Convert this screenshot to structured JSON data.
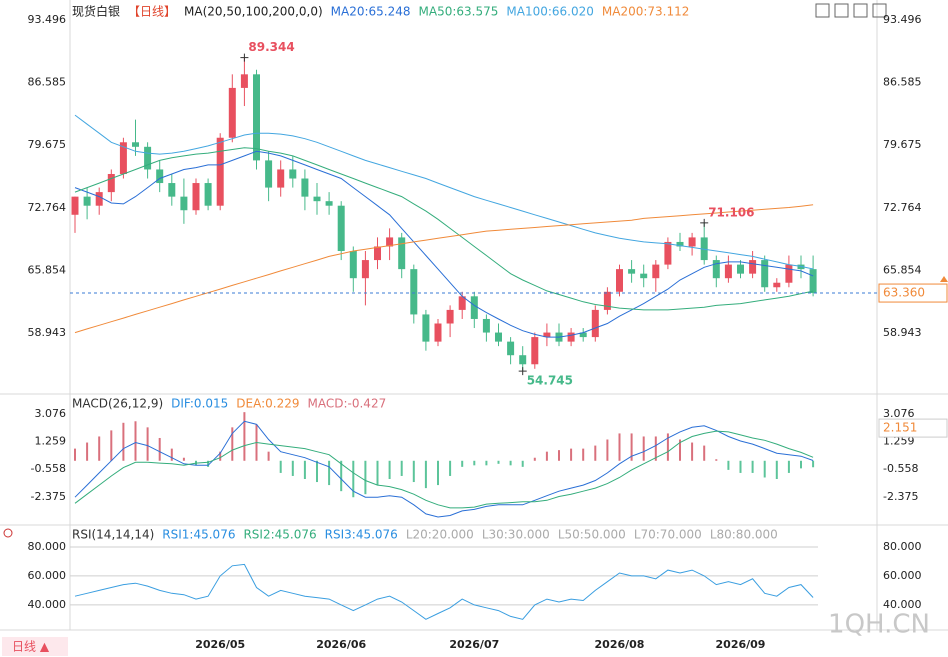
{
  "chart_data": [
    {
      "type": "candlestick",
      "title": "现货白银",
      "period": "【日线】",
      "ma_label": "MA(20,50,100,200,0,0)",
      "categories": [
        null,
        null,
        null,
        null,
        null,
        null,
        null,
        null,
        null,
        null,
        null,
        null,
        "2026/05",
        null,
        null,
        null,
        null,
        null,
        null,
        null,
        null,
        null,
        "2026/06",
        null,
        null,
        null,
        null,
        null,
        null,
        null,
        null,
        null,
        null,
        "2026/07",
        null,
        null,
        null,
        null,
        null,
        null,
        null,
        null,
        null,
        null,
        null,
        "2026/08",
        null,
        null,
        null,
        null,
        null,
        null,
        null,
        null,
        null,
        "2026/09",
        null,
        null,
        null,
        null,
        null,
        null
      ],
      "open": [
        72,
        74,
        73,
        74.5,
        76.5,
        80,
        79.5,
        77,
        75.5,
        74,
        72.5,
        75.5,
        73,
        80.5,
        86,
        87.5,
        78,
        75,
        77,
        76,
        74,
        73.5,
        73,
        68,
        65,
        67,
        68.5,
        69.5,
        66,
        61,
        58,
        60,
        61.5,
        63,
        60.5,
        59,
        58,
        56.5,
        55.5,
        58.5,
        59,
        58,
        59,
        58.5,
        61.5,
        63.5,
        66,
        65.5,
        65,
        66.5,
        69,
        68.5,
        69.5,
        67,
        65,
        66.5,
        65.5,
        67,
        64,
        64.5,
        66.5,
        66
      ],
      "high": [
        74,
        75,
        75,
        77,
        80.5,
        82.5,
        80,
        78,
        76.5,
        76,
        76,
        76,
        81,
        87.5,
        89.344,
        88,
        79,
        78,
        78.5,
        77,
        75.5,
        74.5,
        73.5,
        68.5,
        68,
        69.5,
        70.5,
        70,
        66.5,
        61.5,
        60.5,
        62,
        63.5,
        63.5,
        61,
        60,
        58.5,
        57.5,
        59,
        60,
        60,
        59.5,
        59.5,
        62,
        64,
        66.5,
        67,
        66.5,
        67,
        69.5,
        70,
        70,
        71.106,
        67.5,
        67.5,
        67,
        68,
        67.5,
        65,
        67.5,
        67.5,
        67.5
      ],
      "low": [
        70,
        71.5,
        72,
        73.5,
        76,
        78.5,
        76,
        74.5,
        73,
        71,
        72,
        72.5,
        72.5,
        80,
        84,
        77,
        73.5,
        74,
        75,
        72.5,
        72,
        72,
        67,
        63.5,
        62,
        66,
        67,
        65,
        60,
        57,
        57.5,
        58.5,
        60.5,
        59.5,
        58,
        57.5,
        55.5,
        54.745,
        55,
        57.5,
        57.5,
        57.5,
        58,
        58,
        61,
        63,
        64.5,
        64,
        63.5,
        66,
        68,
        67.5,
        66.5,
        64,
        64.5,
        65,
        65,
        63.5,
        63.5,
        64,
        65,
        63
      ],
      "close": [
        74,
        73,
        74.5,
        76.5,
        80,
        79.5,
        77,
        75.5,
        74,
        72.5,
        75.5,
        73,
        80.5,
        86,
        87.5,
        78,
        75,
        77,
        76,
        74,
        73.5,
        73,
        68,
        65,
        67,
        68.5,
        69.5,
        66,
        61,
        58,
        60,
        61.5,
        63,
        60.5,
        59,
        58,
        56.5,
        55.5,
        58.5,
        59,
        58,
        59,
        58.5,
        61.5,
        63.5,
        66,
        65.5,
        65,
        66.5,
        69,
        68.5,
        69.5,
        67,
        65,
        66.5,
        65.5,
        67,
        64,
        64.5,
        66.5,
        66,
        63.36
      ],
      "up_color": "#e8505f",
      "down_color": "#46b98a",
      "series": [
        {
          "name": "MA20:65.248",
          "color": "#2a6fd6",
          "values": [
            75,
            74.5,
            74,
            73.3,
            73.2,
            74,
            75,
            76,
            76.5,
            77,
            77.2,
            77.5,
            77.5,
            78,
            78.5,
            79,
            78.8,
            78.5,
            78,
            77.5,
            77,
            76.5,
            76,
            75,
            74,
            73,
            72,
            70.5,
            69,
            67.5,
            66,
            64.5,
            63,
            62,
            61.2,
            60.5,
            59.8,
            59.2,
            58.8,
            58.5,
            58.5,
            58.7,
            59,
            59.5,
            60,
            60.8,
            61.5,
            62.2,
            63,
            63.8,
            64.8,
            65.5,
            66.2,
            66.6,
            66.8,
            66.8,
            66.6,
            66.4,
            66.2,
            66,
            65.8,
            65.25
          ]
        },
        {
          "name": "MA50:63.575",
          "color": "#34ad7c",
          "values": [
            74.5,
            75,
            75.5,
            76,
            76.5,
            77,
            77.5,
            78,
            78.3,
            78.5,
            78.7,
            78.8,
            79,
            79.2,
            79.4,
            79.3,
            79,
            78.8,
            78.5,
            78,
            77.5,
            77,
            76.5,
            76,
            75.5,
            75,
            74.5,
            74,
            73.2,
            72.4,
            71.5,
            70.5,
            69.5,
            68.5,
            67.5,
            66.5,
            65.5,
            64.8,
            64.2,
            63.6,
            63.2,
            62.8,
            62.4,
            62.1,
            61.9,
            61.7,
            61.6,
            61.5,
            61.5,
            61.5,
            61.6,
            61.7,
            61.8,
            62,
            62.1,
            62.2,
            62.4,
            62.6,
            62.8,
            63,
            63.3,
            63.575
          ]
        },
        {
          "name": "MA100:66.020",
          "color": "#43a6e0",
          "values": [
            83,
            82,
            81,
            80,
            79.5,
            79,
            78.8,
            78.7,
            78.8,
            79,
            79.3,
            79.6,
            80,
            80.4,
            80.8,
            81,
            81,
            80.9,
            80.7,
            80.4,
            80,
            79.5,
            79,
            78.5,
            78,
            77.6,
            77.2,
            76.8,
            76.4,
            76,
            75.5,
            75,
            74.5,
            74,
            73.6,
            73.2,
            72.8,
            72.4,
            72,
            71.6,
            71.2,
            70.8,
            70.4,
            70,
            69.7,
            69.4,
            69.2,
            69,
            68.9,
            68.8,
            68.6,
            68.4,
            68.2,
            68,
            67.8,
            67.6,
            67.4,
            67.1,
            66.8,
            66.5,
            66.3,
            66.02
          ]
        },
        {
          "name": "MA200:73.112",
          "color": "#f08a3a",
          "values": [
            59,
            59.4,
            59.8,
            60.2,
            60.6,
            61,
            61.4,
            61.8,
            62.2,
            62.6,
            63,
            63.4,
            63.8,
            64.2,
            64.6,
            65,
            65.4,
            65.8,
            66.2,
            66.6,
            67,
            67.4,
            67.7,
            68,
            68.2,
            68.4,
            68.6,
            68.8,
            69,
            69.2,
            69.4,
            69.6,
            69.8,
            70,
            70.2,
            70.3,
            70.4,
            70.5,
            70.6,
            70.7,
            70.8,
            70.9,
            71,
            71.1,
            71.2,
            71.3,
            71.4,
            71.6,
            71.7,
            71.8,
            71.9,
            72,
            72.1,
            72.2,
            72.3,
            72.4,
            72.5,
            72.6,
            72.7,
            72.8,
            72.95,
            73.112
          ]
        }
      ],
      "annotations": [
        {
          "label": "89.344",
          "field": "high",
          "index": 14,
          "color": "#e8505f"
        },
        {
          "label": "71.106",
          "field": "high",
          "index": 52,
          "color": "#e8505f"
        },
        {
          "label": "54.745",
          "field": "low",
          "index": 37,
          "color": "#46b98a"
        }
      ],
      "last_label": "63.360",
      "ylim": [
        52.44,
        95.15
      ],
      "yticks": [
        93.496,
        86.585,
        79.675,
        72.764,
        65.854,
        58.943
      ],
      "grid": false
    },
    {
      "type": "macd",
      "legend": [
        "MACD(26,12,9)",
        "DIF:0.015",
        "DEA:0.229",
        "MACD:-0.427"
      ],
      "histogram": [
        0.8,
        1.2,
        1.6,
        2.0,
        2.5,
        2.6,
        2.2,
        1.5,
        0.8,
        0.2,
        -0.3,
        -0.4,
        0.6,
        2.2,
        3.2,
        2.4,
        0.6,
        -0.8,
        -1.0,
        -1.2,
        -1.4,
        -1.6,
        -2.0,
        -2.4,
        -2.2,
        -1.6,
        -1.2,
        -1.0,
        -1.4,
        -1.8,
        -1.6,
        -1.0,
        -0.4,
        -0.3,
        -0.3,
        -0.2,
        -0.3,
        -0.4,
        0.2,
        0.6,
        0.7,
        0.8,
        0.8,
        1.0,
        1.4,
        1.8,
        1.8,
        1.6,
        1.6,
        1.8,
        1.4,
        1.2,
        1.0,
        0.1,
        -0.6,
        -0.8,
        -0.8,
        -1.1,
        -1.2,
        -0.8,
        -0.5,
        -0.427
      ],
      "up_color": "#d9707c",
      "down_color": "#5cc49a",
      "series": [
        {
          "name": "DIF",
          "color": "#2a6fd6",
          "values": [
            -2.4,
            -1.6,
            -0.8,
            0,
            0.8,
            1.2,
            1.0,
            0.6,
            0.2,
            -0.2,
            -0.3,
            -0.3,
            0.5,
            1.8,
            2.6,
            2.4,
            1.4,
            0.6,
            0.4,
            0.2,
            -0.1,
            -0.4,
            -1.2,
            -2.0,
            -2.4,
            -2.4,
            -2.3,
            -2.4,
            -2.9,
            -3.5,
            -3.7,
            -3.6,
            -3.3,
            -3.2,
            -3.0,
            -2.9,
            -2.9,
            -2.9,
            -2.6,
            -2.3,
            -2.0,
            -1.8,
            -1.6,
            -1.3,
            -0.8,
            -0.2,
            0.3,
            0.6,
            1.0,
            1.5,
            1.9,
            2.2,
            2.3,
            2.0,
            1.6,
            1.3,
            1.1,
            0.8,
            0.5,
            0.4,
            0.3,
            0.015
          ]
        },
        {
          "name": "DEA",
          "color": "#34ad7c",
          "values": [
            -2.8,
            -2.2,
            -1.6,
            -1.0,
            -0.45,
            -0.1,
            -0.1,
            -0.15,
            -0.2,
            -0.3,
            -0.15,
            -0.1,
            0.2,
            0.7,
            1.0,
            1.2,
            1.1,
            1.0,
            0.9,
            0.8,
            0.6,
            0.4,
            -0.2,
            -0.8,
            -1.3,
            -1.6,
            -1.7,
            -1.9,
            -2.2,
            -2.6,
            -2.9,
            -3.1,
            -3.1,
            -3.05,
            -2.85,
            -2.8,
            -2.75,
            -2.7,
            -2.7,
            -2.6,
            -2.35,
            -2.2,
            -2.0,
            -1.8,
            -1.5,
            -1.1,
            -0.6,
            -0.2,
            0.2,
            0.6,
            1.2,
            1.6,
            1.8,
            1.95,
            1.9,
            1.7,
            1.5,
            1.35,
            1.1,
            0.8,
            0.55,
            0.229
          ]
        }
      ],
      "legend_colors": [
        "#333333",
        "#2a8ee0",
        "#f08a3a",
        "#d9707c"
      ],
      "marker": {
        "value": 2.151,
        "label": "2.151"
      },
      "ylim": [
        -4.03,
        4.0
      ],
      "yticks": [
        3.076,
        1.259,
        -0.558,
        -2.375
      ]
    },
    {
      "type": "rsi",
      "legend": [
        "RSI(14,14,14)",
        "RSI1:45.076",
        "RSI2:45.076",
        "RSI3:45.076",
        "L20:20.000",
        "L30:30.000",
        "L50:50.000",
        "L70:70.000",
        "L80:80.000"
      ],
      "legend_colors": [
        "#333333",
        "#2a8ee0",
        "#34ad7c",
        "#2a8ee0",
        "#aaaaaa",
        "#aaaaaa",
        "#aaaaaa",
        "#aaaaaa",
        "#aaaaaa"
      ],
      "series": [
        {
          "name": "RSI1",
          "color": "#3a9ee0",
          "values": [
            46,
            48,
            50,
            52,
            54,
            55,
            53,
            50,
            48,
            47,
            44,
            46,
            60,
            67,
            68,
            52,
            46,
            50,
            48,
            46,
            45,
            44,
            40,
            36,
            40,
            44,
            46,
            42,
            36,
            30,
            34,
            38,
            44,
            40,
            38,
            36,
            32,
            30,
            40,
            44,
            42,
            44,
            43,
            50,
            56,
            62,
            60,
            60,
            58,
            64,
            62,
            64,
            60,
            54,
            56,
            54,
            58,
            48,
            46,
            52,
            54,
            45.076
          ]
        }
      ],
      "ylim": [
        24,
        88.3
      ],
      "yticks": [
        {
          "value": 80,
          "label": "80.000"
        },
        {
          "value": 60,
          "label": "60.000"
        },
        {
          "value": 40,
          "label": "40.000"
        }
      ],
      "grid": true
    },
    {
      "type": "footer",
      "period_button": "日线 ▲",
      "watermark": "1QH.CN"
    }
  ]
}
